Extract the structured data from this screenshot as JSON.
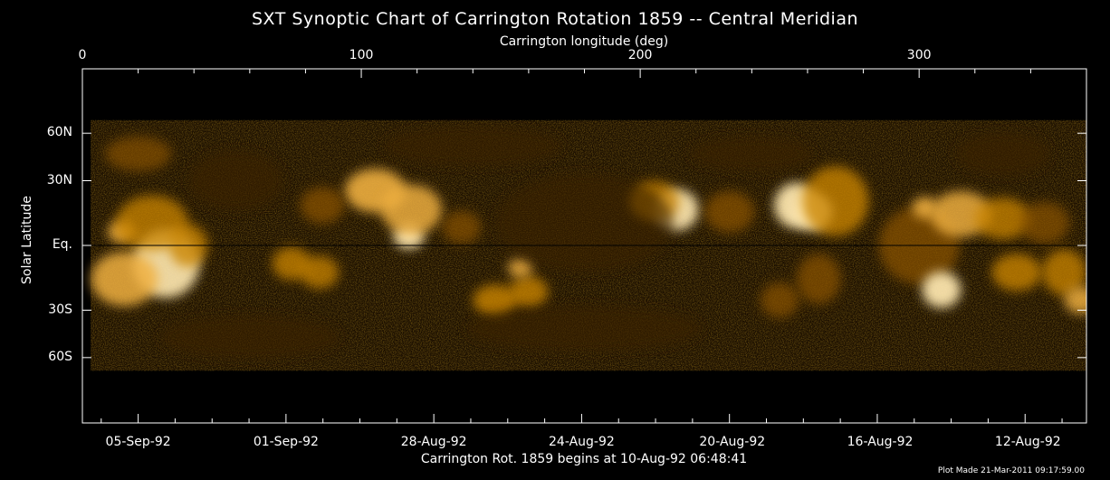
{
  "chart_data": {
    "type": "heatmap",
    "title": "SXT Synoptic Chart of Carrington Rotation 1859 -- Central Meridian",
    "top_axis": {
      "label": "Carrington longitude (deg)",
      "range": [
        0,
        360
      ],
      "ticks": [
        0,
        100,
        200,
        300
      ],
      "tick_labels": [
        "0",
        "100",
        "200",
        "300"
      ]
    },
    "y_axis": {
      "label": "Solar Latitude",
      "ticks": [
        60,
        30,
        0,
        -30,
        -60
      ],
      "tick_labels": [
        "60N",
        "30N",
        "Eq.",
        "30S",
        "60S"
      ]
    },
    "bottom_axis": {
      "dates": [
        "05-Sep-92",
        "01-Sep-92",
        "28-Aug-92",
        "24-Aug-92",
        "20-Aug-92",
        "16-Aug-92",
        "12-Aug-92"
      ],
      "date_longitudes": [
        20,
        73,
        126,
        179,
        233,
        286,
        339
      ]
    },
    "equator_line": true,
    "colormap": [
      "#000000",
      "#3a2000",
      "#8a5200",
      "#c98400",
      "#f0b040",
      "#ffe8b0"
    ],
    "caption": "Carrington Rot. 1859 begins at 10-Aug-92 06:48:41",
    "plot_made": "Plot Made 21-Mar-2011 09:17:59.00",
    "blobs": [
      {
        "lon": 30,
        "lat": -8,
        "w": 20,
        "h": 26,
        "v": 0.9
      },
      {
        "lon": 15,
        "lat": -15,
        "w": 20,
        "h": 20,
        "v": 0.75
      },
      {
        "lon": 14,
        "lat": 6,
        "w": 6,
        "h": 5,
        "v": 0.8
      },
      {
        "lon": 25,
        "lat": 10,
        "w": 22,
        "h": 20,
        "v": 0.55
      },
      {
        "lon": 38,
        "lat": 0,
        "w": 10,
        "h": 14,
        "v": 0.6
      },
      {
        "lon": 105,
        "lat": 25,
        "w": 18,
        "h": 16,
        "v": 0.85
      },
      {
        "lon": 117,
        "lat": 4,
        "w": 7,
        "h": 6,
        "v": 1.0
      },
      {
        "lon": 118,
        "lat": 16,
        "w": 18,
        "h": 18,
        "v": 0.7
      },
      {
        "lon": 86,
        "lat": 18,
        "w": 12,
        "h": 12,
        "v": 0.45
      },
      {
        "lon": 75,
        "lat": -8,
        "w": 10,
        "h": 10,
        "v": 0.55
      },
      {
        "lon": 85,
        "lat": -12,
        "w": 10,
        "h": 10,
        "v": 0.5
      },
      {
        "lon": 148,
        "lat": -25,
        "w": 12,
        "h": 10,
        "v": 0.65
      },
      {
        "lon": 160,
        "lat": -21,
        "w": 10,
        "h": 10,
        "v": 0.6
      },
      {
        "lon": 157,
        "lat": -10,
        "w": 5,
        "h": 4,
        "v": 0.7
      },
      {
        "lon": 136,
        "lat": 8,
        "w": 10,
        "h": 10,
        "v": 0.35
      },
      {
        "lon": 213,
        "lat": 16,
        "w": 12,
        "h": 14,
        "v": 0.9
      },
      {
        "lon": 205,
        "lat": 20,
        "w": 14,
        "h": 14,
        "v": 0.5
      },
      {
        "lon": 232,
        "lat": 15,
        "w": 14,
        "h": 14,
        "v": 0.45
      },
      {
        "lon": 256,
        "lat": 18,
        "w": 12,
        "h": 16,
        "v": 0.95
      },
      {
        "lon": 262,
        "lat": 15,
        "w": 10,
        "h": 12,
        "v": 1.0
      },
      {
        "lon": 270,
        "lat": 20,
        "w": 20,
        "h": 28,
        "v": 0.6
      },
      {
        "lon": 264,
        "lat": -15,
        "w": 12,
        "h": 18,
        "v": 0.45
      },
      {
        "lon": 250,
        "lat": -25,
        "w": 10,
        "h": 12,
        "v": 0.4
      },
      {
        "lon": 300,
        "lat": 0,
        "w": 25,
        "h": 30,
        "v": 0.45
      },
      {
        "lon": 315,
        "lat": 14,
        "w": 18,
        "h": 16,
        "v": 0.7
      },
      {
        "lon": 330,
        "lat": 12,
        "w": 16,
        "h": 14,
        "v": 0.55
      },
      {
        "lon": 302,
        "lat": 17,
        "w": 5,
        "h": 5,
        "v": 0.8
      },
      {
        "lon": 308,
        "lat": -20,
        "w": 10,
        "h": 12,
        "v": 0.95
      },
      {
        "lon": 335,
        "lat": -12,
        "w": 14,
        "h": 12,
        "v": 0.6
      },
      {
        "lon": 352,
        "lat": -12,
        "w": 12,
        "h": 16,
        "v": 0.55
      },
      {
        "lon": 358,
        "lat": -25,
        "w": 8,
        "h": 8,
        "v": 0.7
      },
      {
        "lon": 345,
        "lat": 10,
        "w": 14,
        "h": 14,
        "v": 0.4
      },
      {
        "lon": 55,
        "lat": 30,
        "w": 30,
        "h": 25,
        "v": 0.22
      },
      {
        "lon": 180,
        "lat": 10,
        "w": 60,
        "h": 40,
        "v": 0.15
      },
      {
        "lon": 180,
        "lat": -40,
        "w": 80,
        "h": 20,
        "v": 0.18
      },
      {
        "lon": 60,
        "lat": -45,
        "w": 60,
        "h": 20,
        "v": 0.2
      },
      {
        "lon": 330,
        "lat": 45,
        "w": 30,
        "h": 20,
        "v": 0.22
      },
      {
        "lon": 240,
        "lat": 45,
        "w": 40,
        "h": 15,
        "v": 0.18
      },
      {
        "lon": 140,
        "lat": 50,
        "w": 60,
        "h": 20,
        "v": 0.12
      },
      {
        "lon": 20,
        "lat": 45,
        "w": 20,
        "h": 15,
        "v": 0.3
      }
    ]
  }
}
